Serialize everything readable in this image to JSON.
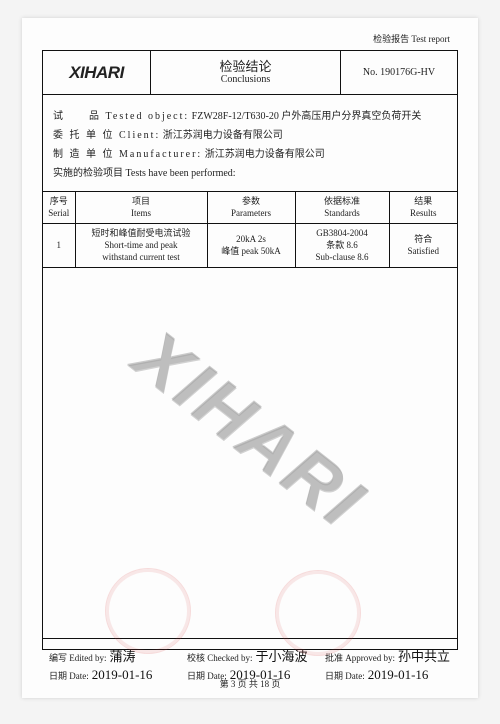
{
  "top_label": "检验报告 Test report",
  "header": {
    "logo": "XIHARI",
    "title_cn": "检验结论",
    "title_en": "Conclusions",
    "report_no": "No. 190176G-HV"
  },
  "info": {
    "tested_label": "试　　品 Tested object:",
    "tested_value": "FZW28F-12/T630-20 户外高压用户分界真空负荷开关",
    "client_label": "委 托 单 位 Client:",
    "client_value": "浙江苏润电力设备有限公司",
    "mfr_label": "制 造 单 位 Manufacturer:",
    "mfr_value": "浙江苏润电力设备有限公司",
    "performed": "实施的检验项目 Tests have been performed:"
  },
  "table": {
    "h1": "序号\nSerial",
    "h2": "项目\nItems",
    "h3": "参数\nParameters",
    "h4": "依据标准\nStandards",
    "h5": "结果\nResults",
    "r1": {
      "c1": "1",
      "c2": "短时和峰值耐受电流试验\nShort-time and peak\nwithstand current test",
      "c3": "20kA 2s\n峰值 peak 50kA",
      "c4": "GB3804-2004\n条款 8.6\nSub-clause 8.6",
      "c5": "符合\nSatisfied"
    }
  },
  "watermark": "XIHARI",
  "sig": {
    "edited_lab": "编写 Edited by:",
    "edited_hand": "蒲涛",
    "checked_lab": "校核 Checked by:",
    "checked_hand": "于小海波",
    "approved_lab": "批准 Approved by:",
    "approved_hand": "孙中共立",
    "date_lab": "日期 Date:",
    "date1": "2019-01-16",
    "date2": "2019-01-16",
    "date3": "2019-01-16"
  },
  "page_num": "第 3 页 共 18 页"
}
